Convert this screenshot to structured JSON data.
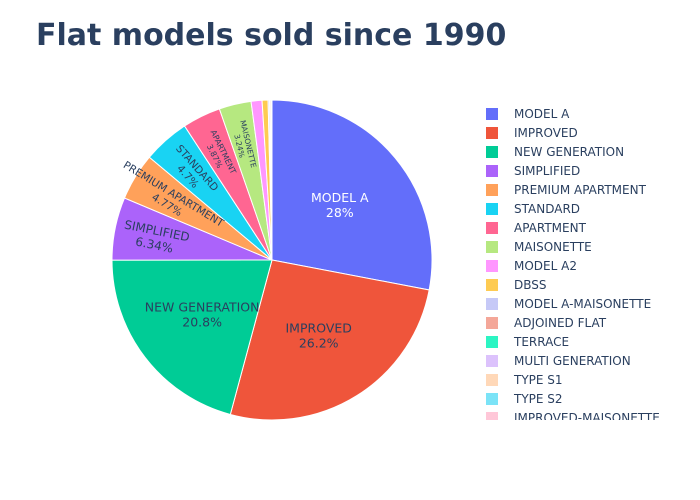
{
  "chart_data": {
    "type": "pie",
    "title": "Flat models sold since 1990",
    "legend_placement": "right",
    "start_angle_deg": 90,
    "direction": "clockwise",
    "slices": [
      {
        "label": "MODEL A",
        "value": 28.0,
        "pct_text": "28%",
        "color": "#636efa"
      },
      {
        "label": "IMPROVED",
        "value": 26.2,
        "pct_text": "26.2%",
        "color": "#EF553B"
      },
      {
        "label": "NEW GENERATION",
        "value": 20.8,
        "pct_text": "20.8%",
        "color": "#00cc96"
      },
      {
        "label": "SIMPLIFIED",
        "value": 6.34,
        "pct_text": "6.34%",
        "color": "#ab63fa"
      },
      {
        "label": "PREMIUM APARTMENT",
        "value": 4.77,
        "pct_text": "4.77%",
        "color": "#FFA15A"
      },
      {
        "label": "STANDARD",
        "value": 4.7,
        "pct_text": "4.7%",
        "color": "#19d3f3"
      },
      {
        "label": "APARTMENT",
        "value": 3.87,
        "pct_text": "3.87%",
        "color": "#FF6692"
      },
      {
        "label": "MAISONETTE",
        "value": 3.24,
        "pct_text": "3.24%",
        "color": "#B6E880"
      },
      {
        "label": "MODEL A2",
        "value": 1.1,
        "pct_text": "",
        "color": "#FF97FF"
      },
      {
        "label": "DBSS",
        "value": 0.6,
        "pct_text": "",
        "color": "#FECB52"
      },
      {
        "label": "MODEL A-MAISONETTE",
        "value": 0.15,
        "pct_text": "",
        "color": "#c6c9f7"
      },
      {
        "label": "ADJOINED FLAT",
        "value": 0.12,
        "pct_text": "",
        "color": "#f4a799"
      },
      {
        "label": "TERRACE",
        "value": 0.05,
        "pct_text": "",
        "color": "#2cf5c3"
      },
      {
        "label": "MULTI GENERATION",
        "value": 0.03,
        "pct_text": "",
        "color": "#dcc2fc"
      },
      {
        "label": "TYPE S1",
        "value": 0.02,
        "pct_text": "",
        "color": "#ffd8b8"
      },
      {
        "label": "TYPE S2",
        "value": 0.01,
        "pct_text": "",
        "color": "#7be3f7"
      },
      {
        "label": "IMPROVED-MAISONETTE",
        "value": 0.01,
        "pct_text": "",
        "color": "#ffc7d8"
      }
    ]
  }
}
